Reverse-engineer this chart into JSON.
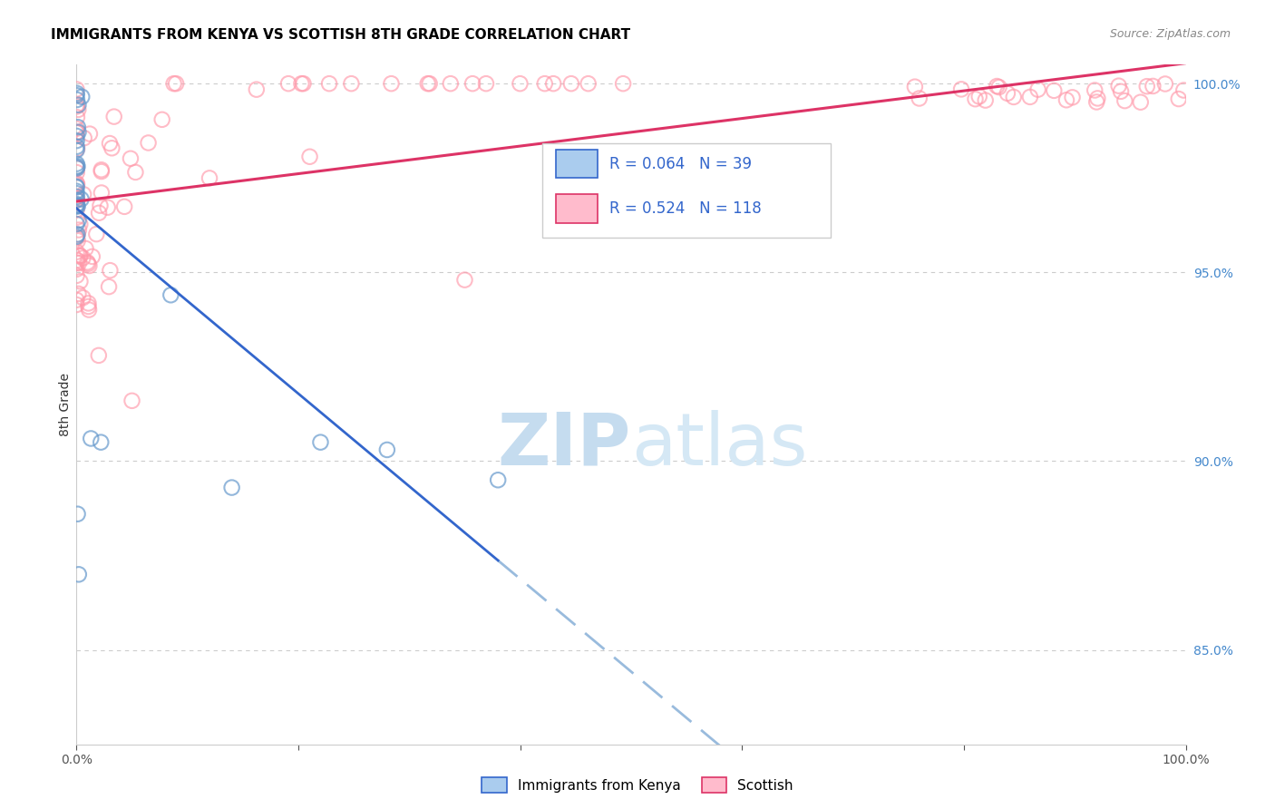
{
  "title": "IMMIGRANTS FROM KENYA VS SCOTTISH 8TH GRADE CORRELATION CHART",
  "source": "Source: ZipAtlas.com",
  "ylabel": "8th Grade",
  "blue_R": "0.064",
  "blue_N": "39",
  "pink_R": "0.524",
  "pink_N": "118",
  "blue_scatter_color": "#6699cc",
  "pink_scatter_color": "#ff99aa",
  "blue_line_color": "#3366cc",
  "pink_line_color": "#dd3366",
  "blue_dashed_color": "#99bbdd",
  "ytick_color": "#4488cc",
  "ytick_labels": [
    "85.0%",
    "90.0%",
    "95.0%",
    "100.0%"
  ],
  "ytick_values": [
    0.85,
    0.9,
    0.95,
    1.0
  ],
  "xlim": [
    0.0,
    1.0
  ],
  "ylim": [
    0.825,
    1.005
  ],
  "legend_label_blue": "Immigrants from Kenya",
  "legend_label_pink": "Scottish",
  "title_fontsize": 11,
  "source_fontsize": 9
}
